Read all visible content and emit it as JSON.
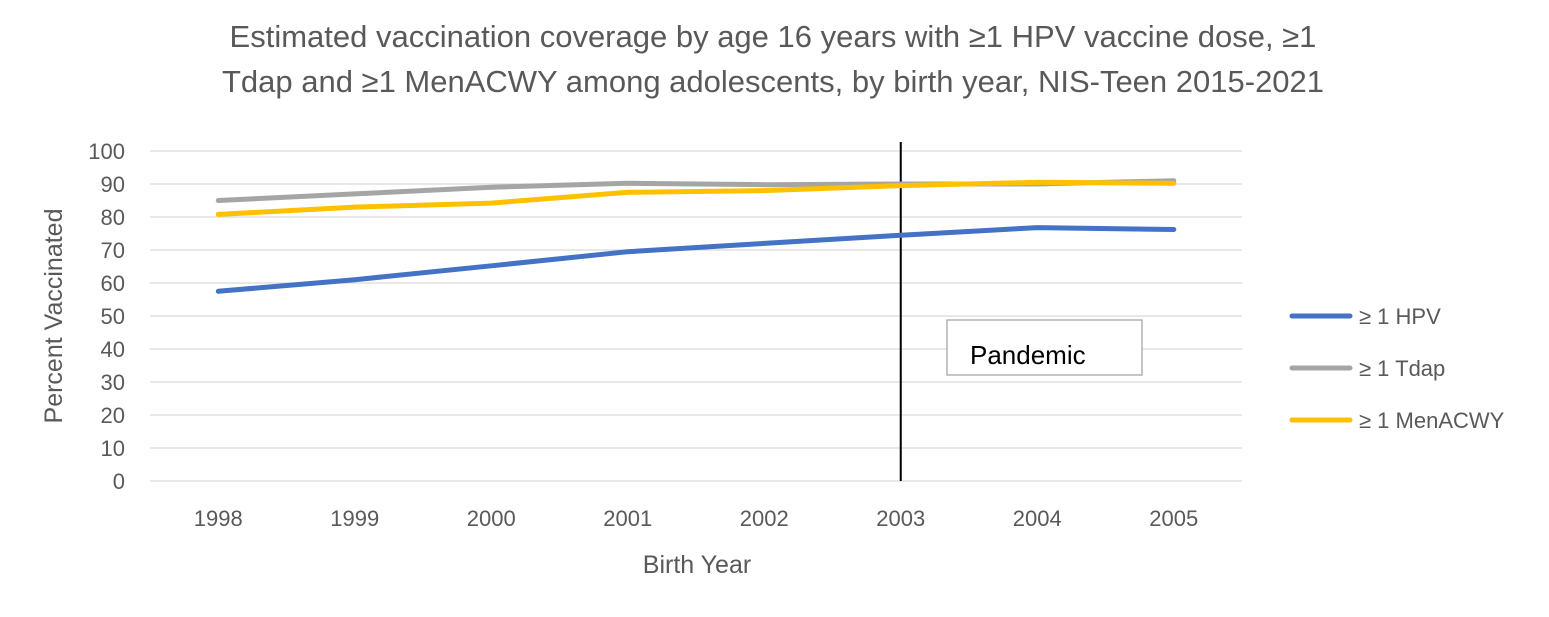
{
  "chart_data": {
    "type": "line",
    "title_lines": [
      "Estimated vaccination coverage by age 16 years with ≥1 HPV vaccine dose, ≥1",
      "Tdap and ≥1 MenACWY among adolescents, by birth year, NIS-Teen 2015-2021"
    ],
    "xlabel": "Birth Year",
    "ylabel": "Percent Vaccinated",
    "categories": [
      "1998",
      "1999",
      "2000",
      "2001",
      "2002",
      "2003",
      "2004",
      "2005"
    ],
    "ylim": [
      0,
      100
    ],
    "yticks": [
      0,
      10,
      20,
      30,
      40,
      50,
      60,
      70,
      80,
      90,
      100
    ],
    "grid": true,
    "legend_position": "right",
    "series": [
      {
        "name": "≥ 1 HPV",
        "color": "#4472c4",
        "values": [
          57.5,
          61,
          65.2,
          69.5,
          72,
          74.5,
          76.8,
          76.2
        ]
      },
      {
        "name": "≥ 1 Tdap",
        "color": "#a5a5a5",
        "values": [
          85,
          87,
          89,
          90.2,
          89.8,
          90,
          90,
          91
        ]
      },
      {
        "name": "≥ 1 MenACWY",
        "color": "#ffc000",
        "values": [
          80.8,
          83,
          84.2,
          87.5,
          88,
          89.5,
          90.5,
          90.2
        ]
      }
    ],
    "annotations": [
      {
        "type": "vertical_line",
        "category": "2003",
        "color": "#000000"
      },
      {
        "type": "text_box",
        "text": "Pandemic"
      }
    ]
  }
}
